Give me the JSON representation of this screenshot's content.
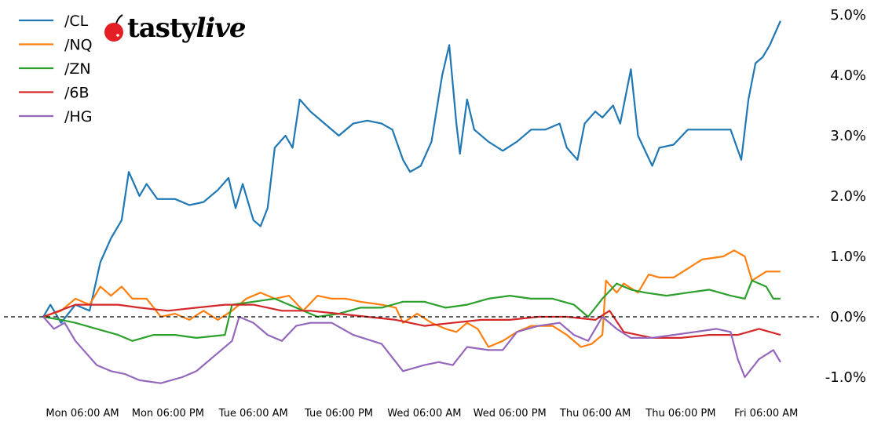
{
  "chart_data": {
    "type": "line",
    "title": "",
    "xlabel": "",
    "ylabel": "",
    "ylim": [
      -1.0,
      5.0
    ],
    "yticks": [
      "5.0%",
      "4.0%",
      "3.0%",
      "2.0%",
      "1.0%",
      "0.0%",
      "-1.0%"
    ],
    "ytick_values": [
      5,
      4,
      3,
      2,
      1,
      0,
      -1
    ],
    "xticks": [
      "Mon 06:00 AM",
      "Mon 06:00 PM",
      "Tue 06:00 AM",
      "Tue 06:00 PM",
      "Wed 06:00 AM",
      "Wed 06:00 PM",
      "Thu 06:00 AM",
      "Thu 06:00 PM",
      "Fri 06:00 AM"
    ],
    "xtick_values": [
      "Mon 06:00",
      "Mon 18:00",
      "Tue 06:00",
      "Tue 18:00",
      "Wed 06:00",
      "Wed 18:00",
      "Thu 06:00",
      "Thu 18:00",
      "Fri 06:00"
    ],
    "reference_line": {
      "y": 0,
      "style": "dashed",
      "color": "#000000"
    },
    "grid": false,
    "legend_position": "top-left",
    "y_axis_side": "right",
    "series": [
      {
        "name": "/CL",
        "color": "#1f77b4",
        "points": [
          [
            "Mon 00:30",
            0
          ],
          [
            "Mon 01:30",
            0.2
          ],
          [
            "Mon 03:00",
            -0.1
          ],
          [
            "Mon 05:00",
            0.2
          ],
          [
            "Mon 07:00",
            0.1
          ],
          [
            "Mon 08:30",
            0.9
          ],
          [
            "Mon 10:00",
            1.3
          ],
          [
            "Mon 11:30",
            1.6
          ],
          [
            "Mon 12:30",
            2.4
          ],
          [
            "Mon 14:00",
            2.0
          ],
          [
            "Mon 15:00",
            2.2
          ],
          [
            "Mon 16:30",
            1.95
          ],
          [
            "Mon 19:00",
            1.95
          ],
          [
            "Mon 21:00",
            1.85
          ],
          [
            "Mon 23:00",
            1.9
          ],
          [
            "Tue 01:00",
            2.1
          ],
          [
            "Tue 02:30",
            2.3
          ],
          [
            "Tue 03:30",
            1.8
          ],
          [
            "Tue 04:30",
            2.2
          ],
          [
            "Tue 06:00",
            1.6
          ],
          [
            "Tue 07:00",
            1.5
          ],
          [
            "Tue 08:00",
            1.8
          ],
          [
            "Tue 09:00",
            2.8
          ],
          [
            "Tue 10:30",
            3.0
          ],
          [
            "Tue 11:30",
            2.8
          ],
          [
            "Tue 12:30",
            3.6
          ],
          [
            "Tue 14:00",
            3.4
          ],
          [
            "Tue 16:00",
            3.2
          ],
          [
            "Tue 18:00",
            3.0
          ],
          [
            "Tue 20:00",
            3.2
          ],
          [
            "Tue 22:00",
            3.25
          ],
          [
            "Wed 00:00",
            3.2
          ],
          [
            "Wed 01:30",
            3.1
          ],
          [
            "Wed 03:00",
            2.6
          ],
          [
            "Wed 04:00",
            2.4
          ],
          [
            "Wed 05:30",
            2.5
          ],
          [
            "Wed 07:00",
            2.9
          ],
          [
            "Wed 08:30",
            4.0
          ],
          [
            "Wed 09:30",
            4.5
          ],
          [
            "Wed 10:30",
            3.2
          ],
          [
            "Wed 11:00",
            2.7
          ],
          [
            "Wed 12:00",
            3.6
          ],
          [
            "Wed 13:00",
            3.1
          ],
          [
            "Wed 15:00",
            2.9
          ],
          [
            "Wed 17:00",
            2.75
          ],
          [
            "Wed 19:00",
            2.9
          ],
          [
            "Wed 21:00",
            3.1
          ],
          [
            "Wed 23:00",
            3.1
          ],
          [
            "Thu 01:00",
            3.2
          ],
          [
            "Thu 02:00",
            2.8
          ],
          [
            "Thu 03:30",
            2.6
          ],
          [
            "Thu 04:30",
            3.2
          ],
          [
            "Thu 06:00",
            3.4
          ],
          [
            "Thu 07:00",
            3.3
          ],
          [
            "Thu 08:30",
            3.5
          ],
          [
            "Thu 09:30",
            3.2
          ],
          [
            "Thu 11:00",
            4.1
          ],
          [
            "Thu 12:00",
            3.0
          ],
          [
            "Thu 14:00",
            2.5
          ],
          [
            "Thu 15:00",
            2.8
          ],
          [
            "Thu 17:00",
            2.85
          ],
          [
            "Thu 19:00",
            3.1
          ],
          [
            "Thu 22:00",
            3.1
          ],
          [
            "Fri 01:00",
            3.1
          ],
          [
            "Fri 02:30",
            2.6
          ],
          [
            "Fri 03:30",
            3.6
          ],
          [
            "Fri 04:30",
            4.2
          ],
          [
            "Fri 05:30",
            4.3
          ],
          [
            "Fri 06:30",
            4.5
          ],
          [
            "Fri 08:00",
            4.9
          ]
        ]
      },
      {
        "name": "/NQ",
        "color": "#ff7f0e",
        "points": [
          [
            "Mon 00:30",
            0
          ],
          [
            "Mon 03:00",
            0.1
          ],
          [
            "Mon 05:00",
            0.3
          ],
          [
            "Mon 07:00",
            0.2
          ],
          [
            "Mon 08:30",
            0.5
          ],
          [
            "Mon 10:00",
            0.35
          ],
          [
            "Mon 11:30",
            0.5
          ],
          [
            "Mon 13:00",
            0.3
          ],
          [
            "Mon 15:00",
            0.3
          ],
          [
            "Mon 17:00",
            0.0
          ],
          [
            "Mon 19:00",
            0.05
          ],
          [
            "Mon 21:00",
            -0.05
          ],
          [
            "Mon 23:00",
            0.1
          ],
          [
            "Tue 01:00",
            -0.05
          ],
          [
            "Tue 03:00",
            0.1
          ],
          [
            "Tue 05:00",
            0.3
          ],
          [
            "Tue 07:00",
            0.4
          ],
          [
            "Tue 09:00",
            0.3
          ],
          [
            "Tue 11:00",
            0.35
          ],
          [
            "Tue 13:00",
            0.1
          ],
          [
            "Tue 15:00",
            0.35
          ],
          [
            "Tue 17:00",
            0.3
          ],
          [
            "Tue 19:00",
            0.3
          ],
          [
            "Tue 21:00",
            0.25
          ],
          [
            "Wed 00:00",
            0.2
          ],
          [
            "Wed 02:00",
            0.15
          ],
          [
            "Wed 03:00",
            -0.1
          ],
          [
            "Wed 05:00",
            0.05
          ],
          [
            "Wed 07:00",
            -0.1
          ],
          [
            "Wed 09:00",
            -0.2
          ],
          [
            "Wed 10:30",
            -0.25
          ],
          [
            "Wed 12:00",
            -0.1
          ],
          [
            "Wed 13:30",
            -0.2
          ],
          [
            "Wed 15:00",
            -0.5
          ],
          [
            "Wed 17:00",
            -0.4
          ],
          [
            "Wed 19:00",
            -0.25
          ],
          [
            "Wed 21:00",
            -0.15
          ],
          [
            "Thu 00:00",
            -0.15
          ],
          [
            "Thu 02:00",
            -0.3
          ],
          [
            "Thu 04:00",
            -0.5
          ],
          [
            "Thu 05:30",
            -0.45
          ],
          [
            "Thu 07:00",
            -0.3
          ],
          [
            "Thu 07:30",
            0.6
          ],
          [
            "Thu 09:00",
            0.4
          ],
          [
            "Thu 10:00",
            0.55
          ],
          [
            "Thu 12:00",
            0.4
          ],
          [
            "Thu 13:30",
            0.7
          ],
          [
            "Thu 15:00",
            0.65
          ],
          [
            "Thu 17:00",
            0.65
          ],
          [
            "Thu 19:00",
            0.8
          ],
          [
            "Thu 21:00",
            0.95
          ],
          [
            "Fri 00:00",
            1.0
          ],
          [
            "Fri 01:30",
            1.1
          ],
          [
            "Fri 03:00",
            1.0
          ],
          [
            "Fri 04:00",
            0.6
          ],
          [
            "Fri 06:00",
            0.75
          ],
          [
            "Fri 08:00",
            0.75
          ]
        ]
      },
      {
        "name": "/ZN",
        "color": "#2ca02c",
        "points": [
          [
            "Mon 00:30",
            0
          ],
          [
            "Mon 03:00",
            -0.05
          ],
          [
            "Mon 05:00",
            -0.1
          ],
          [
            "Mon 08:00",
            -0.2
          ],
          [
            "Mon 11:00",
            -0.3
          ],
          [
            "Mon 13:00",
            -0.4
          ],
          [
            "Mon 16:00",
            -0.3
          ],
          [
            "Mon 19:00",
            -0.3
          ],
          [
            "Mon 22:00",
            -0.35
          ],
          [
            "Tue 02:00",
            -0.3
          ],
          [
            "Tue 03:00",
            0.2
          ],
          [
            "Tue 06:00",
            0.25
          ],
          [
            "Tue 09:00",
            0.3
          ],
          [
            "Tue 12:00",
            0.15
          ],
          [
            "Tue 15:00",
            0.0
          ],
          [
            "Tue 18:00",
            0.05
          ],
          [
            "Tue 21:00",
            0.15
          ],
          [
            "Wed 00:00",
            0.15
          ],
          [
            "Wed 03:00",
            0.25
          ],
          [
            "Wed 06:00",
            0.25
          ],
          [
            "Wed 09:00",
            0.15
          ],
          [
            "Wed 12:00",
            0.2
          ],
          [
            "Wed 15:00",
            0.3
          ],
          [
            "Wed 18:00",
            0.35
          ],
          [
            "Wed 21:00",
            0.3
          ],
          [
            "Thu 00:00",
            0.3
          ],
          [
            "Thu 03:00",
            0.2
          ],
          [
            "Thu 05:00",
            0.0
          ],
          [
            "Thu 07:00",
            0.3
          ],
          [
            "Thu 09:00",
            0.55
          ],
          [
            "Thu 11:00",
            0.45
          ],
          [
            "Thu 13:00",
            0.4
          ],
          [
            "Thu 16:00",
            0.35
          ],
          [
            "Thu 19:00",
            0.4
          ],
          [
            "Thu 22:00",
            0.45
          ],
          [
            "Fri 01:00",
            0.35
          ],
          [
            "Fri 03:00",
            0.3
          ],
          [
            "Fri 04:00",
            0.6
          ],
          [
            "Fri 06:00",
            0.5
          ],
          [
            "Fri 07:00",
            0.3
          ],
          [
            "Fri 08:00",
            0.3
          ]
        ]
      },
      {
        "name": "/6B",
        "color": "#d62728",
        "points": [
          [
            "Mon 00:30",
            0
          ],
          [
            "Mon 05:00",
            0.2
          ],
          [
            "Mon 08:00",
            0.2
          ],
          [
            "Mon 11:00",
            0.2
          ],
          [
            "Mon 14:00",
            0.15
          ],
          [
            "Mon 18:00",
            0.1
          ],
          [
            "Mon 22:00",
            0.15
          ],
          [
            "Tue 02:00",
            0.2
          ],
          [
            "Tue 06:00",
            0.2
          ],
          [
            "Tue 10:00",
            0.1
          ],
          [
            "Tue 14:00",
            0.1
          ],
          [
            "Tue 18:00",
            0.05
          ],
          [
            "Tue 22:00",
            0.0
          ],
          [
            "Wed 02:00",
            -0.05
          ],
          [
            "Wed 06:00",
            -0.15
          ],
          [
            "Wed 10:00",
            -0.1
          ],
          [
            "Wed 14:00",
            -0.05
          ],
          [
            "Wed 18:00",
            -0.05
          ],
          [
            "Wed 22:00",
            0.0
          ],
          [
            "Thu 02:00",
            0.0
          ],
          [
            "Thu 06:00",
            -0.05
          ],
          [
            "Thu 08:00",
            0.1
          ],
          [
            "Thu 10:00",
            -0.25
          ],
          [
            "Thu 14:00",
            -0.35
          ],
          [
            "Thu 18:00",
            -0.35
          ],
          [
            "Thu 22:00",
            -0.3
          ],
          [
            "Fri 02:00",
            -0.3
          ],
          [
            "Fri 05:00",
            -0.2
          ],
          [
            "Fri 08:00",
            -0.3
          ]
        ]
      },
      {
        "name": "/HG",
        "color": "#9467bd",
        "points": [
          [
            "Mon 00:30",
            0
          ],
          [
            "Mon 02:00",
            -0.2
          ],
          [
            "Mon 03:30",
            -0.1
          ],
          [
            "Mon 05:00",
            -0.4
          ],
          [
            "Mon 06:30",
            -0.6
          ],
          [
            "Mon 08:00",
            -0.8
          ],
          [
            "Mon 10:00",
            -0.9
          ],
          [
            "Mon 12:00",
            -0.95
          ],
          [
            "Mon 14:00",
            -1.05
          ],
          [
            "Mon 17:00",
            -1.1
          ],
          [
            "Mon 20:00",
            -1.0
          ],
          [
            "Mon 22:00",
            -0.9
          ],
          [
            "Tue 01:00",
            -0.6
          ],
          [
            "Tue 03:00",
            -0.4
          ],
          [
            "Tue 04:00",
            0.0
          ],
          [
            "Tue 06:00",
            -0.1
          ],
          [
            "Tue 08:00",
            -0.3
          ],
          [
            "Tue 10:00",
            -0.4
          ],
          [
            "Tue 12:00",
            -0.15
          ],
          [
            "Tue 14:00",
            -0.1
          ],
          [
            "Tue 17:00",
            -0.1
          ],
          [
            "Tue 20:00",
            -0.3
          ],
          [
            "Wed 00:00",
            -0.45
          ],
          [
            "Wed 03:00",
            -0.9
          ],
          [
            "Wed 06:00",
            -0.8
          ],
          [
            "Wed 08:00",
            -0.75
          ],
          [
            "Wed 10:00",
            -0.8
          ],
          [
            "Wed 12:00",
            -0.5
          ],
          [
            "Wed 15:00",
            -0.55
          ],
          [
            "Wed 17:00",
            -0.55
          ],
          [
            "Wed 19:00",
            -0.25
          ],
          [
            "Wed 22:00",
            -0.15
          ],
          [
            "Thu 01:00",
            -0.1
          ],
          [
            "Thu 03:00",
            -0.3
          ],
          [
            "Thu 05:00",
            -0.4
          ],
          [
            "Thu 07:00",
            0.0
          ],
          [
            "Thu 09:00",
            -0.2
          ],
          [
            "Thu 11:00",
            -0.35
          ],
          [
            "Thu 14:00",
            -0.35
          ],
          [
            "Thu 17:00",
            -0.3
          ],
          [
            "Thu 20:00",
            -0.25
          ],
          [
            "Thu 23:00",
            -0.2
          ],
          [
            "Fri 01:00",
            -0.25
          ],
          [
            "Fri 02:00",
            -0.7
          ],
          [
            "Fri 03:00",
            -1.0
          ],
          [
            "Fri 05:00",
            -0.7
          ],
          [
            "Fri 07:00",
            -0.55
          ],
          [
            "Fri 08:00",
            -0.75
          ]
        ]
      }
    ]
  },
  "logo": {
    "text_bold": "tasty",
    "text_italic": "live",
    "cherry_color": "#e31e24"
  }
}
